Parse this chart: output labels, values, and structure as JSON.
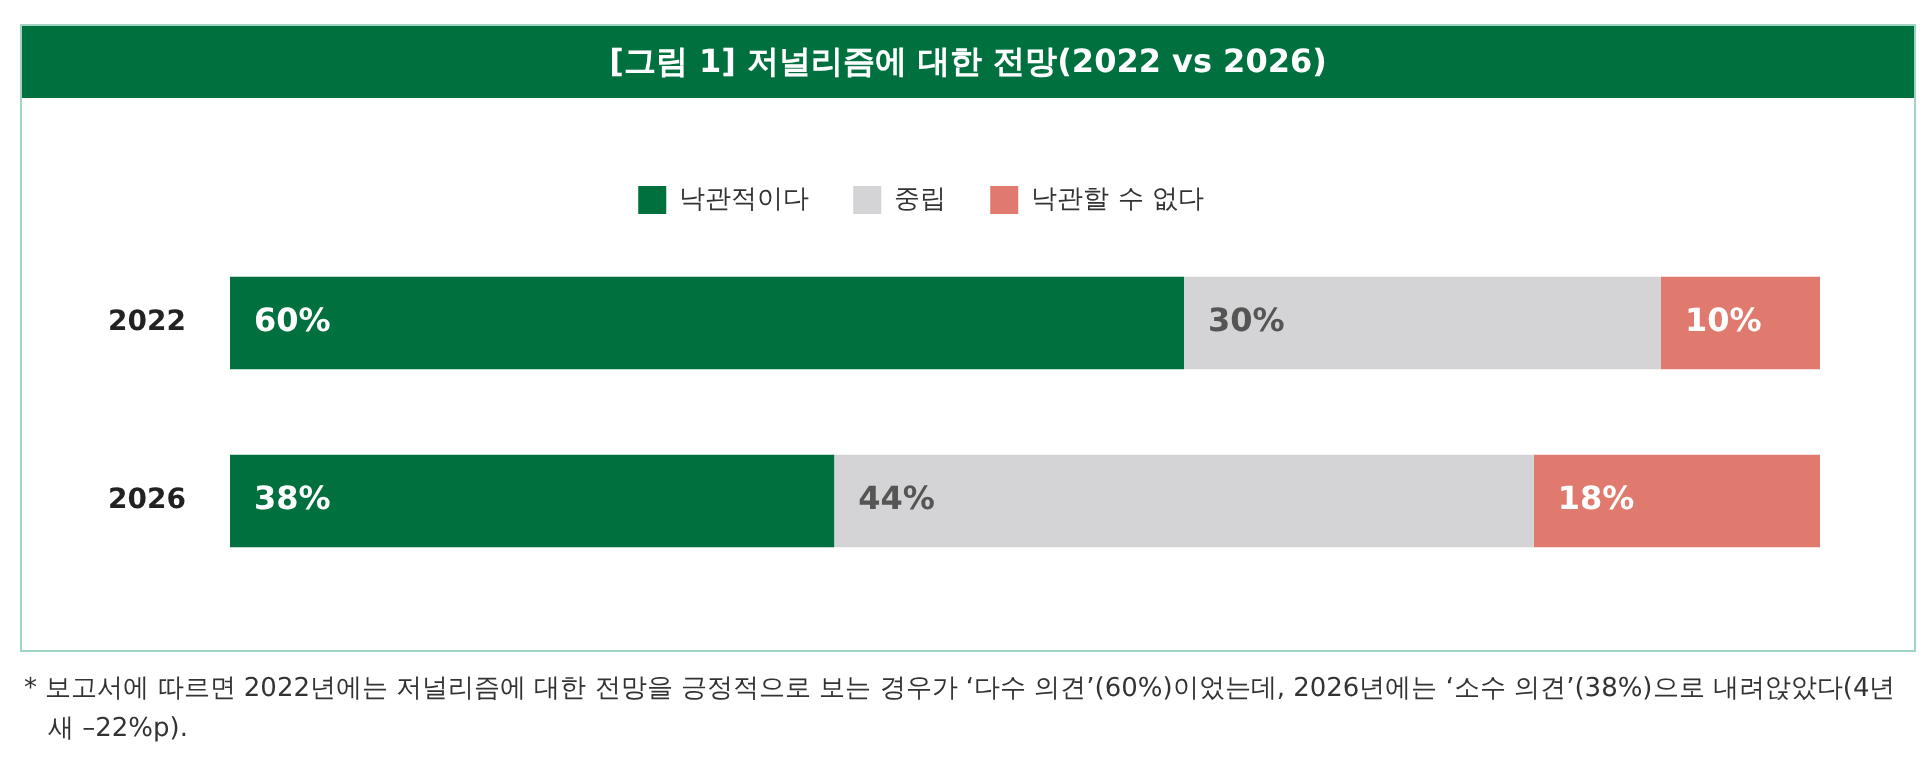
{
  "chart_data": {
    "type": "bar",
    "orientation": "horizontal",
    "stacked": true,
    "title": "[그림 1] 저널리즘에 대한 전망(2022 vs 2026)",
    "categories": [
      "2022",
      "2026"
    ],
    "series": [
      {
        "name": "낙관적이다",
        "color": "#00703f",
        "values": [
          60,
          38
        ],
        "value_labels": [
          "60%",
          "38%"
        ]
      },
      {
        "name": "중립",
        "color": "#d4d4d6",
        "values": [
          30,
          44
        ],
        "value_labels": [
          "30%",
          "44%"
        ]
      },
      {
        "name": "낙관할 수 없다",
        "color": "#e07a6e",
        "values": [
          10,
          18
        ],
        "value_labels": [
          "10%",
          "18%"
        ]
      }
    ],
    "xlim": [
      0,
      100
    ],
    "tick_labels": "y",
    "legend": "top",
    "annotations": [
      "* 보고서에 따르면 2022년에는 저널리즘에 대한 전망을 긍정적으로 보는 경우가 ‘다수 의견’(60%)이었는데, 2026년에는 ‘소수 의견’(38%)으로 내려앉았다(4년 새 –22%p)."
    ]
  }
}
